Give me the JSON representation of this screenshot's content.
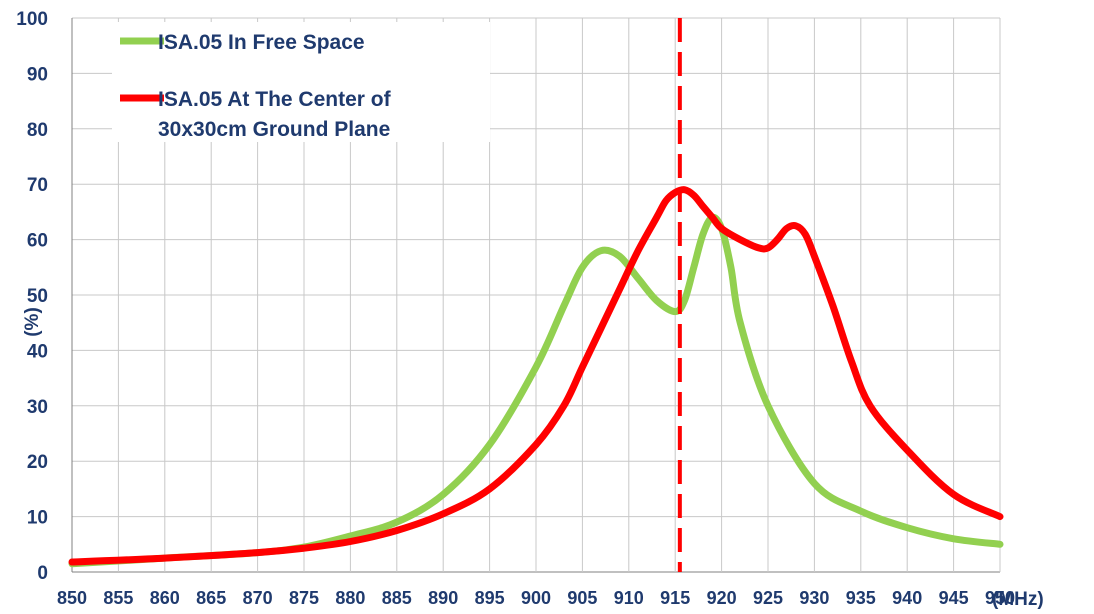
{
  "chart_data": {
    "type": "line",
    "xlabel": "(MHz)",
    "ylabel": "(%)",
    "xlim": [
      850,
      950
    ],
    "ylim": [
      0,
      100
    ],
    "x_ticks": [
      "850",
      "855",
      "860",
      "865",
      "870",
      "875",
      "880",
      "885",
      "890",
      "895",
      "900",
      "905",
      "910",
      "915",
      "920",
      "925",
      "930",
      "935",
      "940",
      "945",
      "950"
    ],
    "y_ticks": [
      "0",
      "10",
      "20",
      "30",
      "40",
      "50",
      "60",
      "70",
      "80",
      "90",
      "100"
    ],
    "grid": true,
    "legend_position": "top-left",
    "marker_line": {
      "x": 915.5,
      "color": "#ff0000",
      "style": "dashed"
    },
    "series": [
      {
        "name": "ISA.05 In Free Space",
        "color": "#92d050",
        "points": [
          [
            850,
            1.5
          ],
          [
            860,
            2.5
          ],
          [
            870,
            3.5
          ],
          [
            875,
            4.5
          ],
          [
            880,
            6.5
          ],
          [
            885,
            9
          ],
          [
            890,
            14
          ],
          [
            895,
            23
          ],
          [
            900,
            37
          ],
          [
            903,
            48
          ],
          [
            905,
            55
          ],
          [
            907,
            58
          ],
          [
            909,
            57
          ],
          [
            911,
            53
          ],
          [
            913,
            49
          ],
          [
            915,
            47
          ],
          [
            916,
            49
          ],
          [
            917,
            55
          ],
          [
            918,
            61
          ],
          [
            919,
            64
          ],
          [
            920,
            62
          ],
          [
            921,
            55
          ],
          [
            922,
            45
          ],
          [
            925,
            30
          ],
          [
            930,
            16
          ],
          [
            935,
            11
          ],
          [
            940,
            8
          ],
          [
            945,
            6
          ],
          [
            950,
            5
          ]
        ]
      },
      {
        "name": "ISA.05 At The Center of",
        "name_line2": "30x30cm Ground Plane",
        "color": "#ff0000",
        "points": [
          [
            850,
            1.8
          ],
          [
            860,
            2.5
          ],
          [
            870,
            3.5
          ],
          [
            875,
            4.3
          ],
          [
            880,
            5.5
          ],
          [
            885,
            7.5
          ],
          [
            890,
            10.5
          ],
          [
            895,
            15
          ],
          [
            900,
            23
          ],
          [
            903,
            30
          ],
          [
            905,
            37
          ],
          [
            907,
            44
          ],
          [
            909,
            51
          ],
          [
            911,
            58
          ],
          [
            913,
            64
          ],
          [
            914,
            67
          ],
          [
            915,
            68.5
          ],
          [
            916,
            69
          ],
          [
            917,
            68
          ],
          [
            918,
            66
          ],
          [
            919,
            64
          ],
          [
            920,
            62
          ],
          [
            922,
            60
          ],
          [
            924,
            58.5
          ],
          [
            925,
            58.5
          ],
          [
            926,
            60
          ],
          [
            927,
            62
          ],
          [
            928,
            62.5
          ],
          [
            929,
            61
          ],
          [
            930,
            57
          ],
          [
            932,
            48
          ],
          [
            934,
            38
          ],
          [
            936,
            30
          ],
          [
            940,
            22
          ],
          [
            945,
            14
          ],
          [
            950,
            10
          ]
        ]
      }
    ]
  }
}
